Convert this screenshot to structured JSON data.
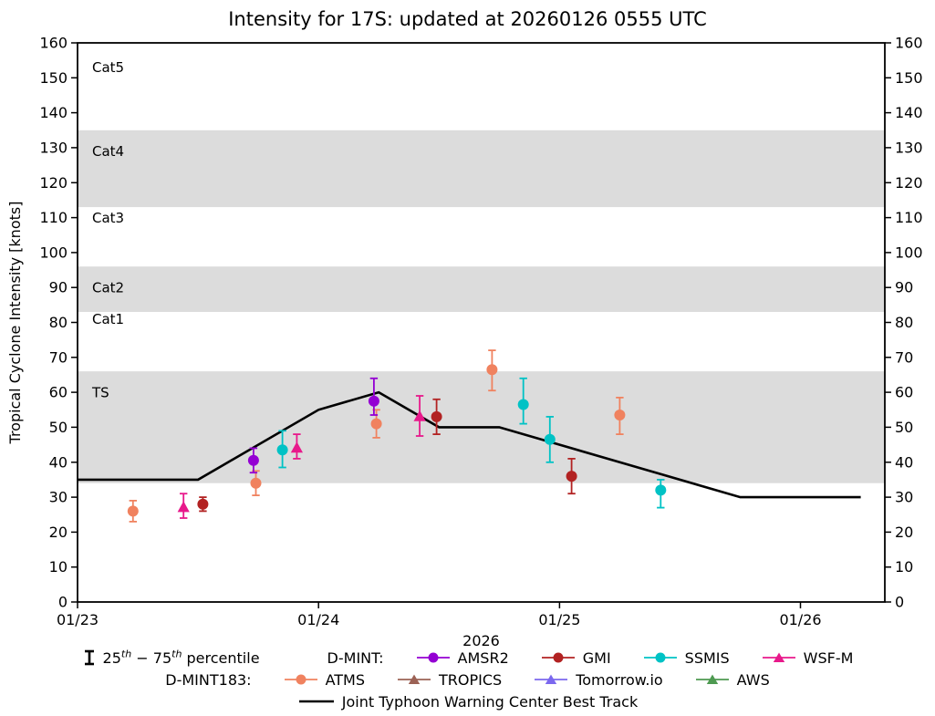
{
  "chart_data": {
    "type": "scatter",
    "title": "Intensity for 17S: updated at 20260126 0555 UTC",
    "xlabel": "2026",
    "ylabel": "Tropical Cyclone Intensity [knots]",
    "ylim": [
      0,
      160
    ],
    "xlim": [
      0,
      3.35
    ],
    "x_unit": "days since 2026-01-23 00:00 UTC",
    "grid": false,
    "y_ticks": [
      0,
      10,
      20,
      30,
      40,
      50,
      60,
      70,
      80,
      90,
      100,
      110,
      120,
      130,
      140,
      150,
      160
    ],
    "x_ticks": [
      {
        "pos": 0,
        "label": "01/23"
      },
      {
        "pos": 1,
        "label": "01/24"
      },
      {
        "pos": 2,
        "label": "01/25"
      },
      {
        "pos": 3,
        "label": "01/26"
      }
    ],
    "band_color": "#dcdcdc",
    "bands": [
      {
        "from": 34,
        "to": 66
      },
      {
        "from": 83,
        "to": 96
      },
      {
        "from": 113,
        "to": 135
      }
    ],
    "category_labels": [
      {
        "label": "Cat5",
        "y": 153
      },
      {
        "label": "Cat4",
        "y": 129
      },
      {
        "label": "Cat3",
        "y": 110
      },
      {
        "label": "Cat2",
        "y": 90
      },
      {
        "label": "Cat1",
        "y": 81
      },
      {
        "label": "TS",
        "y": 60
      }
    ],
    "best_track": {
      "name": "Joint Typhoon Warning Center Best Track",
      "color": "#000000",
      "points": [
        [
          0,
          35
        ],
        [
          0.5,
          35
        ],
        [
          1.0,
          55
        ],
        [
          1.25,
          60
        ],
        [
          1.5,
          50
        ],
        [
          1.75,
          50
        ],
        [
          2.75,
          30
        ],
        [
          3.25,
          30
        ]
      ]
    },
    "series": [
      {
        "name": "ATMS",
        "group": "D-MINT183",
        "color": "#f0825f",
        "marker": "circle",
        "points": [
          {
            "x": 0.23,
            "y": 26,
            "lo": 23,
            "hi": 29
          },
          {
            "x": 0.74,
            "y": 34,
            "lo": 30.5,
            "hi": 37.5
          },
          {
            "x": 1.24,
            "y": 51,
            "lo": 47,
            "hi": 55
          },
          {
            "x": 1.72,
            "y": 66.5,
            "lo": 60.5,
            "hi": 72
          },
          {
            "x": 2.25,
            "y": 53.5,
            "lo": 48,
            "hi": 58.5
          }
        ]
      },
      {
        "name": "TROPICS",
        "group": "D-MINT183",
        "color": "#9c6255",
        "marker": "triangle",
        "points": []
      },
      {
        "name": "Tomorrow.io",
        "group": "D-MINT183",
        "color": "#7b68ee",
        "marker": "triangle",
        "points": []
      },
      {
        "name": "AWS",
        "group": "D-MINT183",
        "color": "#4e9a51",
        "marker": "triangle",
        "points": []
      },
      {
        "name": "AMSR2",
        "group": "D-MINT",
        "color": "#9400d3",
        "marker": "circle",
        "points": [
          {
            "x": 0.73,
            "y": 40.5,
            "lo": 37,
            "hi": 44
          },
          {
            "x": 1.23,
            "y": 57.5,
            "lo": 53.5,
            "hi": 64
          }
        ]
      },
      {
        "name": "GMI",
        "group": "D-MINT",
        "color": "#b22222",
        "marker": "circle",
        "points": [
          {
            "x": 0.52,
            "y": 28,
            "lo": 26,
            "hi": 30
          },
          {
            "x": 1.49,
            "y": 53,
            "lo": 48,
            "hi": 58
          },
          {
            "x": 2.05,
            "y": 36,
            "lo": 31,
            "hi": 41
          }
        ]
      },
      {
        "name": "SSMIS",
        "group": "D-MINT",
        "color": "#00c2c5",
        "marker": "circle",
        "points": [
          {
            "x": 0.85,
            "y": 43.5,
            "lo": 38.5,
            "hi": 49
          },
          {
            "x": 1.85,
            "y": 56.5,
            "lo": 51,
            "hi": 64
          },
          {
            "x": 1.96,
            "y": 46.5,
            "lo": 40,
            "hi": 53
          },
          {
            "x": 2.42,
            "y": 32,
            "lo": 27,
            "hi": 35
          }
        ]
      },
      {
        "name": "WSF-M",
        "group": "D-MINT",
        "color": "#e8198b",
        "marker": "triangle",
        "points": [
          {
            "x": 0.44,
            "y": 27,
            "lo": 24,
            "hi": 31
          },
          {
            "x": 0.91,
            "y": 44,
            "lo": 41,
            "hi": 48
          },
          {
            "x": 1.42,
            "y": 53,
            "lo": 47.5,
            "hi": 59
          }
        ]
      }
    ]
  },
  "legend": {
    "percentile": {
      "pre": "25",
      "sup1": "th",
      "mid": " − 75",
      "sup2": "th",
      "post": " percentile"
    },
    "dmint_label": "D-MINT:",
    "dmint183_label": "D-MINT183:"
  }
}
